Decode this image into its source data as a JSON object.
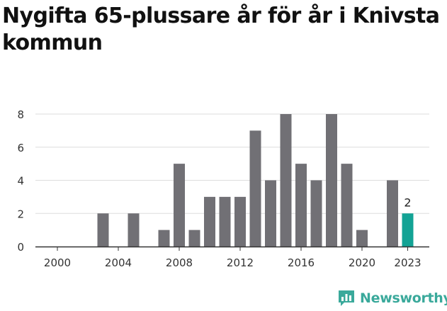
{
  "chart_data": {
    "type": "bar",
    "title": "Nygifta 65-plussare år för år i Knivsta kommun",
    "xlabel": "",
    "ylabel": "",
    "categories": [
      2000,
      2001,
      2002,
      2003,
      2004,
      2005,
      2006,
      2007,
      2008,
      2009,
      2010,
      2011,
      2012,
      2013,
      2014,
      2015,
      2016,
      2017,
      2018,
      2019,
      2020,
      2021,
      2022,
      2023
    ],
    "values": [
      0,
      0,
      0,
      2,
      0,
      2,
      0,
      1,
      5,
      1,
      3,
      3,
      3,
      7,
      4,
      8,
      5,
      4,
      8,
      5,
      1,
      0,
      4,
      2
    ],
    "x_ticks": [
      "2000",
      "2004",
      "2008",
      "2012",
      "2016",
      "2020",
      "2023"
    ],
    "y_ticks": [
      "0",
      "2",
      "4",
      "6",
      "8"
    ],
    "ylim": [
      0,
      8
    ],
    "grid": "horizontal",
    "highlight_category": 2023,
    "highlight_label": "2",
    "colors": {
      "bar": "#717075",
      "highlight": "#13a395",
      "grid": "#dddddd",
      "axis": "#333333"
    }
  },
  "branding": {
    "logo_text": "Newsworthy",
    "logo_icon": "bar-chart-speech-bubble-icon",
    "logo_color": "#3aa99b"
  }
}
